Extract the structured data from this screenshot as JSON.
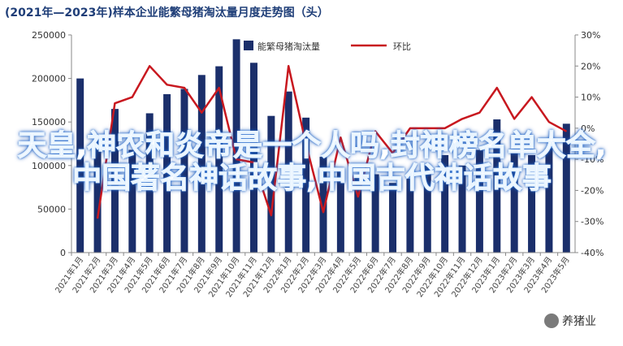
{
  "chart_data": {
    "type": "bar",
    "title": "(2021年—2023年)样本企业能繁母猪淘汰量月度走势图（头）",
    "categories": [
      "2021年1月",
      "2021年2月",
      "2021年3月",
      "2021年4月",
      "2021年5月",
      "2021年6月",
      "2021年7月",
      "2021年8月",
      "2021年9月",
      "2021年10月",
      "2021年11月",
      "2021年12月",
      "2022年1月",
      "2022年2月",
      "2022年3月",
      "2022年4月",
      "2022年5月",
      "2022年6月",
      "2022年7月",
      "2022年8月",
      "2022年9月",
      "2022年10月",
      "2022年11月",
      "2022年12月",
      "2023年1月",
      "2023年2月",
      "2023年3月",
      "2023年4月",
      "2023年5月"
    ],
    "series": [
      {
        "name": "能繁母猪淘汰量",
        "axis": "left",
        "type": "bar",
        "color": "#1b2f6b",
        "values": [
          200000,
          130000,
          165000,
          118000,
          160000,
          182000,
          188000,
          204000,
          214000,
          245000,
          218000,
          157000,
          185000,
          155000,
          110000,
          95000,
          90000,
          90000,
          80000,
          85000,
          100000,
          112000,
          100000,
          118000,
          153000,
          115000,
          112000,
          120000,
          148000
        ]
      },
      {
        "name": "环比",
        "axis": "right",
        "type": "line",
        "color": "#c8181f",
        "values": [
          null,
          -0.29,
          0.08,
          0.1,
          0.2,
          0.14,
          0.13,
          0.05,
          0.13,
          -0.1,
          -0.11,
          -0.28,
          0.2,
          -0.05,
          -0.27,
          -0.03,
          -0.22,
          -0.01,
          -0.08,
          0.0,
          0.0,
          0.0,
          0.03,
          0.05,
          0.13,
          0.03,
          0.1,
          0.02,
          -0.01
        ]
      }
    ],
    "y_left": {
      "min": 0,
      "max": 250000,
      "ticks": [
        0,
        50000,
        100000,
        150000,
        200000,
        250000
      ]
    },
    "y_right": {
      "min": -0.4,
      "max": 0.3,
      "ticks": [
        "-40%",
        "-30%",
        "-20%",
        "-10%",
        "0%",
        "10%",
        "20%",
        "30%"
      ]
    },
    "legend": {
      "placement": "top-center"
    },
    "grid": false
  },
  "overlay_text": "天皇,神农和炎帝是一个人吗,封神榜名单大全,中国著名神话故事,中国古代神话故事",
  "watermark": "养猪业",
  "colors": {
    "bar": "#1b2f6b",
    "line": "#c8181f",
    "title": "#1f3e78"
  }
}
